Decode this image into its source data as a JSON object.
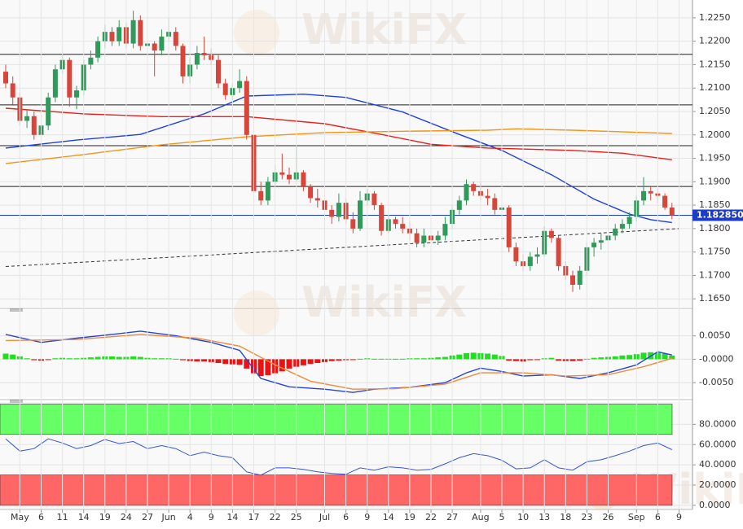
{
  "watermark": "WikiFX",
  "chart_data": [
    {
      "type": "candlestick",
      "up_color": "#2f9a5a",
      "down_color": "#d7463b",
      "ylim": [
        1.1633,
        1.2288
      ],
      "yticks": [
        {
          "value": 1.165,
          "label": "1.1650"
        },
        {
          "value": 1.17,
          "label": "1.1700"
        },
        {
          "value": 1.175,
          "label": "1.1750"
        },
        {
          "value": 1.18,
          "label": "1.1800"
        },
        {
          "value": 1.185,
          "label": "1.1850"
        },
        {
          "value": 1.19,
          "label": "1.1900"
        },
        {
          "value": 1.195,
          "label": "1.1950"
        },
        {
          "value": 1.2,
          "label": "1.2000"
        },
        {
          "value": 1.205,
          "label": "1.2050"
        },
        {
          "value": 1.21,
          "label": "1.2100"
        },
        {
          "value": 1.215,
          "label": "1.2150"
        },
        {
          "value": 1.22,
          "label": "1.2200"
        },
        {
          "value": 1.225,
          "label": "1.2250"
        }
      ],
      "grid": true,
      "ohlc": [
        [
          1.2135,
          1.215,
          1.21,
          1.211
        ],
        [
          1.211,
          1.2125,
          1.2065,
          1.208
        ],
        [
          1.208,
          1.209,
          1.202,
          1.203
        ],
        [
          1.203,
          1.2055,
          1.2015,
          1.204
        ],
        [
          1.204,
          1.205,
          1.199,
          1.2
        ],
        [
          1.2,
          1.203,
          1.1985,
          1.202
        ],
        [
          1.202,
          1.209,
          1.201,
          1.208
        ],
        [
          1.208,
          1.215,
          1.207,
          1.214
        ],
        [
          1.214,
          1.2175,
          1.213,
          1.216
        ],
        [
          1.216,
          1.2165,
          1.206,
          1.208
        ],
        [
          1.208,
          1.2105,
          1.2055,
          1.2095
        ],
        [
          1.2095,
          1.216,
          1.2085,
          1.215
        ],
        [
          1.215,
          1.218,
          1.214,
          1.2165
        ],
        [
          1.2165,
          1.221,
          1.2155,
          1.22
        ],
        [
          1.22,
          1.2235,
          1.2185,
          1.222
        ],
        [
          1.222,
          1.223,
          1.219,
          1.22
        ],
        [
          1.22,
          1.2245,
          1.219,
          1.223
        ],
        [
          1.223,
          1.224,
          1.2185,
          1.2195
        ],
        [
          1.2195,
          1.2265,
          1.2185,
          1.2245
        ],
        [
          1.2245,
          1.2255,
          1.218,
          1.219
        ],
        [
          1.219,
          1.221,
          1.217,
          1.2195
        ],
        [
          1.2195,
          1.22,
          1.2125,
          1.218
        ],
        [
          1.218,
          1.2225,
          1.217,
          1.221
        ],
        [
          1.221,
          1.225,
          1.22,
          1.222
        ],
        [
          1.222,
          1.223,
          1.218,
          1.219
        ],
        [
          1.219,
          1.2195,
          1.211,
          1.2125
        ],
        [
          1.2125,
          1.2165,
          1.211,
          1.215
        ],
        [
          1.215,
          1.219,
          1.214,
          1.2175
        ],
        [
          1.2175,
          1.221,
          1.216,
          1.217
        ],
        [
          1.217,
          1.2185,
          1.215,
          1.216
        ],
        [
          1.216,
          1.217,
          1.21,
          1.211
        ],
        [
          1.211,
          1.212,
          1.2075,
          1.2085
        ],
        [
          1.2085,
          1.211,
          1.2075,
          1.21
        ],
        [
          1.21,
          1.214,
          1.209,
          1.2115
        ],
        [
          1.2115,
          1.2125,
          1.199,
          1.2
        ],
        [
          1.2,
          1.201,
          1.186,
          1.188
        ],
        [
          1.188,
          1.19,
          1.185,
          1.186
        ],
        [
          1.186,
          1.191,
          1.185,
          1.19
        ],
        [
          1.19,
          1.1935,
          1.189,
          1.192
        ],
        [
          1.192,
          1.196,
          1.1905,
          1.1915
        ],
        [
          1.1915,
          1.193,
          1.1895,
          1.1905
        ],
        [
          1.1905,
          1.1975,
          1.19,
          1.192
        ],
        [
          1.192,
          1.1925,
          1.188,
          1.189
        ],
        [
          1.189,
          1.1895,
          1.1855,
          1.1865
        ],
        [
          1.1865,
          1.1885,
          1.1845,
          1.186
        ],
        [
          1.186,
          1.187,
          1.183,
          1.184
        ],
        [
          1.184,
          1.185,
          1.181,
          1.1825
        ],
        [
          1.1825,
          1.1875,
          1.1815,
          1.1855
        ],
        [
          1.1855,
          1.1865,
          1.181,
          1.182
        ],
        [
          1.182,
          1.1835,
          1.179,
          1.18
        ],
        [
          1.18,
          1.188,
          1.1795,
          1.186
        ],
        [
          1.186,
          1.1885,
          1.185,
          1.1875
        ],
        [
          1.1875,
          1.188,
          1.184,
          1.185
        ],
        [
          1.185,
          1.1855,
          1.1785,
          1.1795
        ],
        [
          1.1795,
          1.183,
          1.179,
          1.182
        ],
        [
          1.182,
          1.1825,
          1.18,
          1.181
        ],
        [
          1.181,
          1.1825,
          1.179,
          1.18
        ],
        [
          1.18,
          1.1815,
          1.1775,
          1.179
        ],
        [
          1.179,
          1.18,
          1.176,
          1.177
        ],
        [
          1.177,
          1.18,
          1.176,
          1.1785
        ],
        [
          1.1785,
          1.1795,
          1.1765,
          1.1775
        ],
        [
          1.1775,
          1.1795,
          1.1765,
          1.1785
        ],
        [
          1.1785,
          1.1825,
          1.1775,
          1.181
        ],
        [
          1.181,
          1.185,
          1.18,
          1.184
        ],
        [
          1.184,
          1.187,
          1.183,
          1.186
        ],
        [
          1.186,
          1.1905,
          1.185,
          1.1895
        ],
        [
          1.1895,
          1.19,
          1.187,
          1.188
        ],
        [
          1.188,
          1.19,
          1.186,
          1.187
        ],
        [
          1.187,
          1.1885,
          1.185,
          1.1865
        ],
        [
          1.1865,
          1.1875,
          1.183,
          1.184
        ],
        [
          1.184,
          1.1855,
          1.183,
          1.1845
        ],
        [
          1.1845,
          1.185,
          1.175,
          1.176
        ],
        [
          1.176,
          1.177,
          1.172,
          1.173
        ],
        [
          1.173,
          1.1745,
          1.171,
          1.172
        ],
        [
          1.172,
          1.175,
          1.171,
          1.174
        ],
        [
          1.174,
          1.176,
          1.1725,
          1.1745
        ],
        [
          1.1745,
          1.1805,
          1.174,
          1.1795
        ],
        [
          1.1795,
          1.18,
          1.177,
          1.178
        ],
        [
          1.178,
          1.1785,
          1.171,
          1.172
        ],
        [
          1.172,
          1.173,
          1.169,
          1.17
        ],
        [
          1.17,
          1.171,
          1.1665,
          1.168
        ],
        [
          1.168,
          1.172,
          1.167,
          1.171
        ],
        [
          1.171,
          1.177,
          1.17,
          1.176
        ],
        [
          1.176,
          1.178,
          1.174,
          1.177
        ],
        [
          1.177,
          1.179,
          1.1755,
          1.1775
        ],
        [
          1.1775,
          1.1795,
          1.174,
          1.1785
        ],
        [
          1.1785,
          1.181,
          1.1775,
          1.18
        ],
        [
          1.18,
          1.182,
          1.179,
          1.181
        ],
        [
          1.181,
          1.1835,
          1.18,
          1.1825
        ],
        [
          1.1825,
          1.187,
          1.1815,
          1.186
        ],
        [
          1.186,
          1.191,
          1.185,
          1.188
        ],
        [
          1.188,
          1.189,
          1.186,
          1.1875
        ],
        [
          1.1875,
          1.1885,
          1.1855,
          1.187
        ],
        [
          1.187,
          1.1875,
          1.184,
          1.1845
        ],
        [
          1.1845,
          1.1855,
          1.182,
          1.18285
        ],
        null
      ],
      "lines": [
        {
          "color": "#1f3fe0",
          "x": [
            0,
            10,
            19,
            28,
            34,
            42,
            48,
            56,
            64,
            70,
            77,
            83,
            88,
            91,
            94
          ],
          "values": [
            1.1972,
            1.1989,
            1.2001,
            1.2045,
            1.2083,
            1.2087,
            1.208,
            1.2049,
            1.2001,
            1.1967,
            1.1915,
            1.1863,
            1.1831,
            1.1819,
            1.1813
          ]
        },
        {
          "color": "#e8201c",
          "x": [
            0,
            11,
            22,
            34,
            45,
            53,
            60,
            68,
            80,
            87,
            94
          ],
          "values": [
            1.2057,
            1.2045,
            1.2039,
            1.2039,
            1.2024,
            1.2001,
            1.198,
            1.1972,
            1.1967,
            1.1961,
            1.1947
          ]
        },
        {
          "color": "#f39414",
          "x": [
            0,
            11,
            22,
            34,
            45,
            57,
            68,
            72,
            80,
            94
          ],
          "values": [
            1.1939,
            1.1958,
            1.1979,
            1.1996,
            1.2005,
            1.2008,
            1.201,
            1.2013,
            1.201,
            1.2003
          ]
        }
      ],
      "hlines": {
        "color": "#222222",
        "values": [
          1.2172,
          1.2064,
          1.1977,
          1.189
        ]
      },
      "trendline": {
        "color": "#333333",
        "x": [
          0,
          95
        ],
        "values": [
          1.1719,
          1.18
        ]
      },
      "last_price": {
        "value": 1.18285,
        "label": "1.182850",
        "color": "#1a3cc8"
      }
    },
    {
      "type": "macd",
      "ylim": [
        -0.0081,
        0.0105
      ],
      "yticks": [
        {
          "value": 0.005,
          "label": "0.0050"
        },
        {
          "value": 0,
          "label": "-0.0000"
        },
        {
          "value": -0.005,
          "label": "-0.0050"
        }
      ],
      "grid": true,
      "series": [
        {
          "color": "#2244dd",
          "x": [
            0,
            5,
            10,
            15,
            19,
            24,
            29,
            33,
            36,
            40,
            45,
            49,
            52,
            57,
            62,
            65,
            67,
            70,
            73,
            77,
            81,
            85,
            89,
            92,
            94
          ],
          "values": [
            0.0053,
            0.0036,
            0.0045,
            0.0053,
            0.006,
            0.005,
            0.0036,
            0.0019,
            -0.0041,
            -0.0059,
            -0.0064,
            -0.0071,
            -0.0064,
            -0.006,
            -0.005,
            -0.0029,
            -0.0019,
            -0.0026,
            -0.0036,
            -0.0033,
            -0.0041,
            -0.0029,
            -0.0012,
            0.0016,
            0.0009
          ]
        },
        {
          "color": "#f08a3c",
          "x": [
            0,
            10,
            19,
            27,
            33,
            38,
            43,
            49,
            55,
            62,
            67,
            73,
            79,
            85,
            90,
            94
          ],
          "values": [
            0.004,
            0.0042,
            0.0053,
            0.0045,
            0.0028,
            -0.0012,
            -0.0047,
            -0.0064,
            -0.0063,
            -0.0053,
            -0.0029,
            -0.0029,
            -0.0036,
            -0.0033,
            -0.0016,
            0.0002
          ]
        }
      ],
      "histogram": {
        "up_color": "#22dd22",
        "down_color": "#ee1111",
        "values": [
          0.0012,
          0.001,
          0.0006,
          0.0002,
          -0.0002,
          -0.0003,
          -0.0001,
          0.0002,
          0.0003,
          0.0002,
          0.0002,
          0.0003,
          0.0004,
          0.0005,
          0.0006,
          0.0006,
          0.0005,
          0.0005,
          0.0006,
          0.0005,
          0.0003,
          0.0002,
          0.0002,
          0.0002,
          0.0001,
          -0.0002,
          -0.0004,
          -0.0005,
          -0.0005,
          -0.0006,
          -0.0008,
          -0.001,
          -0.0011,
          -0.0012,
          -0.002,
          -0.003,
          -0.0036,
          -0.0034,
          -0.003,
          -0.0026,
          -0.002,
          -0.0016,
          -0.0013,
          -0.001,
          -0.0008,
          -0.0006,
          -0.0004,
          -0.0003,
          -0.0002,
          -0.0001,
          0.0001,
          0.0002,
          0.0001,
          0.0001,
          0.0001,
          0.0001,
          0.0001,
          0.0002,
          0.0002,
          0.0002,
          0.0003,
          0.0004,
          0.0005,
          0.0008,
          0.001,
          0.0013,
          0.0014,
          0.0013,
          0.0012,
          0.001,
          0.0007,
          -0.0003,
          -0.0004,
          -0.0005,
          -0.0002,
          -0.0001,
          0.0002,
          0.0003,
          -0.0003,
          -0.0004,
          -0.0004,
          -0.0003,
          0.0001,
          0.0003,
          0.0004,
          0.0005,
          0.0006,
          0.0008,
          0.0009,
          0.0011,
          0.0014,
          0.0015,
          0.0014,
          0.0012,
          0.0008,
          null
        ]
      }
    },
    {
      "type": "rsi",
      "ylim": [
        -4.1,
        102
      ],
      "yticks": [
        {
          "value": 0,
          "label": "0.0000"
        },
        {
          "value": 20,
          "label": "20.0000"
        },
        {
          "value": 40,
          "label": "40.0000"
        },
        {
          "value": 60,
          "label": "60.0000"
        },
        {
          "value": 80,
          "label": "80.0000"
        }
      ],
      "grid": true,
      "categories": [
        null,
        null,
        "May",
        null,
        null,
        "6",
        null,
        null,
        "11",
        null,
        null,
        "14",
        null,
        null,
        "19",
        null,
        null,
        "24",
        null,
        null,
        "27",
        null,
        null,
        "Jun",
        null,
        null,
        "4",
        null,
        null,
        "9",
        null,
        null,
        "14",
        null,
        null,
        "17",
        null,
        null,
        "22",
        null,
        null,
        "25",
        null,
        null,
        null,
        "Jul",
        null,
        null,
        "6",
        null,
        null,
        "9",
        null,
        null,
        "14",
        null,
        null,
        "19",
        null,
        null,
        "22",
        null,
        null,
        "27",
        null,
        null,
        null,
        "Aug",
        null,
        null,
        "5",
        null,
        null,
        "10",
        null,
        null,
        "13",
        null,
        null,
        "18",
        null,
        null,
        "23",
        null,
        null,
        "26",
        null,
        null,
        null,
        "Sep",
        null,
        null,
        "6",
        null,
        null,
        "9"
      ],
      "bands": [
        {
          "from": 70,
          "to": 100,
          "color": "#66ff66"
        },
        {
          "from": 0,
          "to": 30,
          "color": "#ff6666"
        }
      ],
      "series": [
        {
          "color": "#3355dd",
          "x": [
            0,
            2,
            4,
            6,
            8,
            10,
            12,
            14,
            16,
            18,
            20,
            22,
            24,
            26,
            28,
            30,
            32,
            34,
            36,
            38,
            40,
            42,
            44,
            46,
            48,
            50,
            52,
            54,
            56,
            58,
            60,
            62,
            64,
            66,
            68,
            70,
            72,
            74,
            76,
            78,
            80,
            82,
            84,
            86,
            88,
            90,
            92,
            94
          ],
          "values": [
            65.7,
            53.5,
            56,
            65.7,
            61.6,
            56,
            59,
            65,
            61,
            63,
            56,
            59,
            56,
            49,
            52.6,
            49,
            47,
            33,
            29.8,
            37,
            37,
            35.5,
            33,
            31.4,
            30.6,
            37,
            34.7,
            38,
            37,
            34.7,
            35.5,
            41,
            47,
            51,
            49,
            44.5,
            36,
            37,
            45,
            37,
            34.7,
            43,
            45,
            49,
            53.5,
            59,
            61.6,
            55
          ]
        }
      ]
    }
  ]
}
